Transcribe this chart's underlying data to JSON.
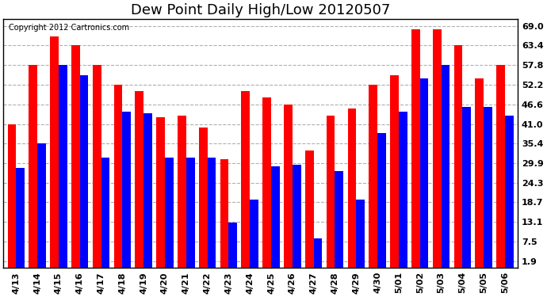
{
  "title": "Dew Point Daily High/Low 20120507",
  "copyright": "Copyright 2012 Cartronics.com",
  "categories": [
    "4/13",
    "4/14",
    "4/15",
    "4/16",
    "4/17",
    "4/18",
    "4/19",
    "4/20",
    "4/21",
    "4/22",
    "4/23",
    "4/24",
    "4/25",
    "4/26",
    "4/27",
    "4/28",
    "4/29",
    "4/30",
    "5/01",
    "5/02",
    "5/03",
    "5/04",
    "5/05",
    "5/06"
  ],
  "high": [
    41.0,
    57.8,
    66.0,
    63.4,
    57.8,
    52.2,
    50.5,
    43.0,
    43.5,
    40.0,
    31.0,
    50.5,
    48.5,
    46.6,
    33.5,
    43.5,
    45.5,
    52.2,
    55.0,
    68.0,
    68.0,
    63.5,
    54.0,
    57.8
  ],
  "low": [
    28.5,
    35.4,
    57.8,
    55.0,
    31.5,
    44.5,
    44.0,
    31.5,
    31.5,
    31.5,
    13.0,
    19.5,
    29.0,
    29.5,
    8.5,
    27.5,
    19.5,
    38.5,
    44.5,
    54.0,
    57.8,
    46.0,
    46.0,
    43.5
  ],
  "bar_color_high": "#ff0000",
  "bar_color_low": "#0000ff",
  "background_color": "#ffffff",
  "plot_bg_color": "#ffffff",
  "grid_color": "#b0b0b0",
  "yticks": [
    1.9,
    7.5,
    13.1,
    18.7,
    24.3,
    29.9,
    35.4,
    41.0,
    46.6,
    52.2,
    57.8,
    63.4,
    69.0
  ],
  "ylim": [
    0,
    71
  ],
  "title_fontsize": 13,
  "tick_fontsize": 8,
  "copyright_fontsize": 7
}
